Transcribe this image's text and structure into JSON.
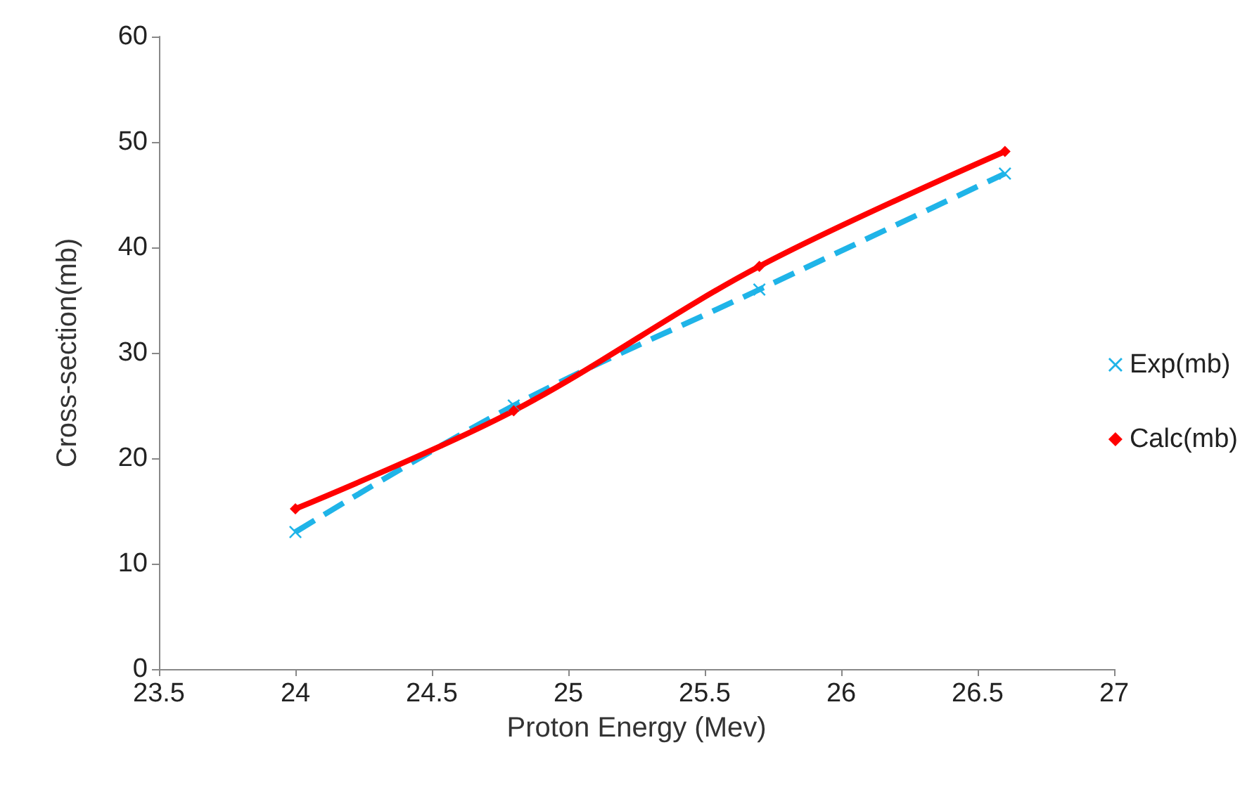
{
  "chart_data": {
    "type": "line",
    "xlabel": "Proton Energy (Mev)",
    "ylabel": "Cross-section(mb)",
    "x": [
      24,
      24.8,
      25.7,
      26.6
    ],
    "series": [
      {
        "name": "Exp(mb)",
        "color": "#1fb4e8",
        "values": [
          13,
          25,
          36,
          47
        ],
        "marker": "cross",
        "line_style": "dashed"
      },
      {
        "name": "Calc(mb)",
        "color": "#ff0000",
        "values": [
          15.2,
          24.5,
          38.2,
          49.1
        ],
        "marker": "diamond",
        "line_style": "solid"
      }
    ],
    "xlim": [
      23.5,
      27
    ],
    "xticks": [
      23.5,
      24,
      24.5,
      25,
      25.5,
      26,
      26.5,
      27
    ],
    "ylim": [
      0,
      60
    ],
    "yticks": [
      0,
      10,
      20,
      30,
      40,
      50,
      60
    ],
    "grid": false,
    "legend": "right"
  }
}
